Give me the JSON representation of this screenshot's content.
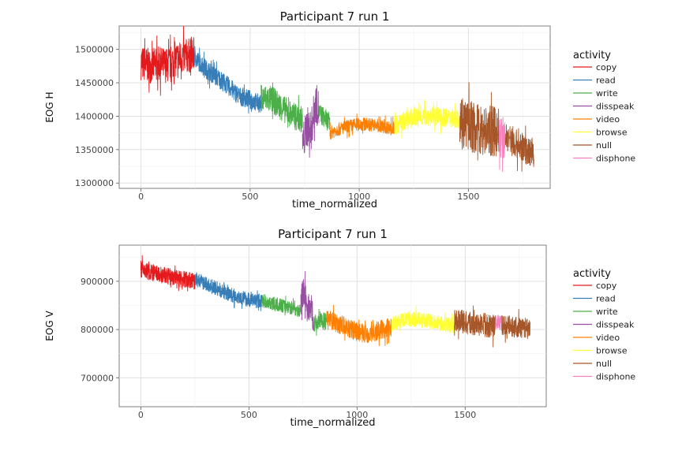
{
  "colors": {
    "copy": "#e41a1c",
    "read": "#377eb8",
    "write": "#4daf4a",
    "disspeak": "#984ea3",
    "video": "#ff7f00",
    "browse": "#ffff33",
    "null": "#a65628",
    "disphone": "#f781bf"
  },
  "legend": {
    "title": "activity",
    "items": [
      "copy",
      "read",
      "write",
      "disspeak",
      "video",
      "browse",
      "null",
      "disphone"
    ]
  },
  "chart_data": [
    {
      "type": "line",
      "title": "Participant 7 run 1",
      "xlabel": "time_normalized",
      "ylabel": "EOG H",
      "xlim": [
        -100,
        1875
      ],
      "ylim": [
        1292000,
        1535000
      ],
      "xticks": [
        0,
        500,
        1000,
        1500
      ],
      "xtick_labels": [
        "0",
        "500",
        "1000",
        "1500"
      ],
      "yticks": [
        1300000,
        1350000,
        1400000,
        1450000,
        1500000
      ],
      "ytick_labels": [
        "1300000",
        "1350000",
        "1400000",
        "1450000",
        "1500000"
      ],
      "grid": true,
      "legend_position": "right",
      "series": [
        {
          "name": "copy",
          "x": [
            0,
            40,
            80,
            120,
            160,
            200,
            245
          ],
          "y": [
            1480000,
            1475000,
            1478000,
            1476000,
            1485000,
            1490000,
            1492000
          ],
          "noise": 26000
        },
        {
          "name": "read",
          "x": [
            245,
            300,
            350,
            400,
            450,
            500,
            550
          ],
          "y": [
            1488000,
            1470000,
            1458000,
            1445000,
            1430000,
            1425000,
            1418000
          ],
          "noise": 14000
        },
        {
          "name": "write",
          "x": [
            550,
            600,
            650,
            700,
            740
          ],
          "y": [
            1428000,
            1425000,
            1412000,
            1400000,
            1395000
          ],
          "noise": 20000
        },
        {
          "name": "disspeak",
          "x": [
            740,
            760,
            780,
            800,
            815
          ],
          "y": [
            1355000,
            1385000,
            1380000,
            1420000,
            1410000
          ],
          "noise": 30000
        },
        {
          "name": "write",
          "x": [
            815,
            840,
            865
          ],
          "y": [
            1405000,
            1398000,
            1390000
          ],
          "noise": 15000
        },
        {
          "name": "video",
          "x": [
            865,
            900,
            950,
            1000,
            1050,
            1100,
            1160
          ],
          "y": [
            1375000,
            1380000,
            1385000,
            1388000,
            1388000,
            1385000,
            1382000
          ],
          "noise": 10000
        },
        {
          "name": "browse",
          "x": [
            1160,
            1200,
            1250,
            1300,
            1350,
            1400,
            1460
          ],
          "y": [
            1385000,
            1392000,
            1398000,
            1400000,
            1400000,
            1398000,
            1395000
          ],
          "noise": 14000
        },
        {
          "name": "null",
          "x": [
            1460,
            1500,
            1550,
            1600,
            1640
          ],
          "y": [
            1400000,
            1385000,
            1380000,
            1378000,
            1375000
          ],
          "noise": 38000
        },
        {
          "name": "disphone",
          "x": [
            1640,
            1655,
            1670
          ],
          "y": [
            1365000,
            1370000,
            1360000
          ],
          "noise": 30000
        },
        {
          "name": "null",
          "x": [
            1670,
            1710,
            1750,
            1800
          ],
          "y": [
            1370000,
            1360000,
            1352000,
            1345000
          ],
          "noise": 22000
        }
      ]
    },
    {
      "type": "line",
      "title": "Participant 7 run 1",
      "xlabel": "time_normalized",
      "ylabel": "EOG V",
      "xlim": [
        -100,
        1875
      ],
      "ylim": [
        640000,
        975000
      ],
      "xticks": [
        0,
        500,
        1000,
        1500
      ],
      "xtick_labels": [
        "0",
        "500",
        "1000",
        "1500"
      ],
      "yticks": [
        700000,
        800000,
        900000
      ],
      "ytick_labels": [
        "700000",
        "800000",
        "900000"
      ],
      "grid": true,
      "legend_position": "right",
      "series": [
        {
          "name": "copy",
          "x": [
            0,
            50,
            100,
            150,
            200,
            250
          ],
          "y": [
            925000,
            918000,
            912000,
            908000,
            905000,
            900000
          ],
          "noise": 18000
        },
        {
          "name": "read",
          "x": [
            250,
            300,
            350,
            400,
            450,
            500,
            560
          ],
          "y": [
            905000,
            895000,
            885000,
            875000,
            868000,
            862000,
            858000
          ],
          "noise": 15000
        },
        {
          "name": "write",
          "x": [
            560,
            600,
            650,
            700,
            740
          ],
          "y": [
            860000,
            855000,
            850000,
            845000,
            838000
          ],
          "noise": 14000
        },
        {
          "name": "disspeak",
          "x": [
            740,
            755,
            770,
            785,
            800
          ],
          "y": [
            860000,
            880000,
            840000,
            850000,
            820000
          ],
          "noise": 30000
        },
        {
          "name": "write",
          "x": [
            800,
            830,
            860
          ],
          "y": [
            810000,
            820000,
            815000
          ],
          "noise": 18000
        },
        {
          "name": "video",
          "x": [
            860,
            900,
            950,
            1000,
            1050,
            1100,
            1160
          ],
          "y": [
            820000,
            815000,
            805000,
            795000,
            790000,
            798000,
            805000
          ],
          "noise": 20000
        },
        {
          "name": "browse",
          "x": [
            1160,
            1200,
            1250,
            1300,
            1350,
            1400,
            1450
          ],
          "y": [
            810000,
            818000,
            822000,
            820000,
            815000,
            812000,
            808000
          ],
          "noise": 16000
        },
        {
          "name": "null",
          "x": [
            1450,
            1500,
            1550,
            1600,
            1640
          ],
          "y": [
            820000,
            815000,
            810000,
            808000,
            806000
          ],
          "noise": 24000
        },
        {
          "name": "disphone",
          "x": [
            1640,
            1655,
            1670
          ],
          "y": [
            810000,
            818000,
            812000
          ],
          "noise": 16000
        },
        {
          "name": "null",
          "x": [
            1670,
            1720,
            1760,
            1800
          ],
          "y": [
            808000,
            806000,
            804000,
            805000
          ],
          "noise": 22000
        }
      ]
    }
  ]
}
